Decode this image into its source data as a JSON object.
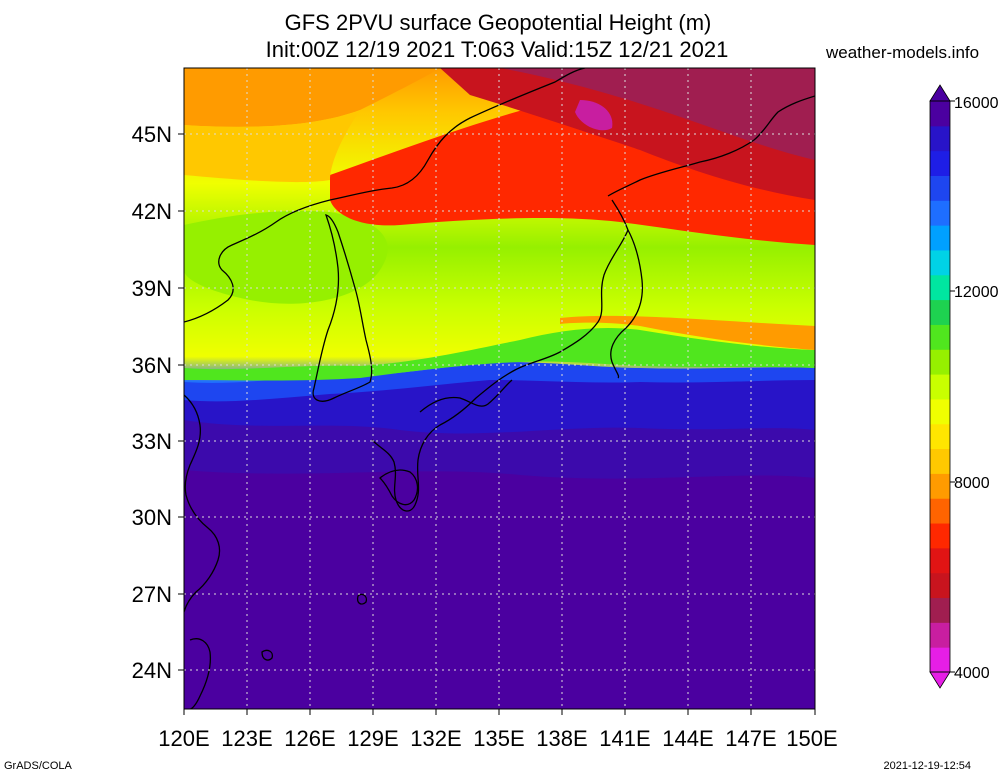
{
  "header": {
    "title_line1": "GFS 2PVU surface Geopotential Height (m)",
    "title_line2": "Init:00Z 12/19 2021 T:063 Valid:15Z 12/21 2021",
    "credit": "weather-models.info"
  },
  "map": {
    "projection": "lat-lon",
    "lon_range": [
      120,
      150
    ],
    "lat_range": [
      22.5,
      47.5
    ],
    "lon_ticks": [
      "120E",
      "123E",
      "126E",
      "129E",
      "132E",
      "135E",
      "138E",
      "141E",
      "144E",
      "147E",
      "150E"
    ],
    "lat_ticks": [
      "45N",
      "42N",
      "39N",
      "36N",
      "33N",
      "30N",
      "27N",
      "24N"
    ]
  },
  "colorbar": {
    "labels": [
      "16000",
      "12000",
      "8000",
      "4000"
    ],
    "colors": [
      "#e61ee6",
      "#c81ea0",
      "#a01e50",
      "#c8141e",
      "#e11414",
      "#ff2800",
      "#ff6400",
      "#ff9b00",
      "#ffc800",
      "#ffe600",
      "#f0ff00",
      "#c8ff00",
      "#96f000",
      "#50e61e",
      "#1ed250",
      "#00e6a0",
      "#00d2e6",
      "#00a0ff",
      "#1e6eff",
      "#1e46f0",
      "#1e1ee6",
      "#2814c8",
      "#4b00a0"
    ]
  },
  "footer": {
    "left": "GrADS/COLA",
    "right": "2021-12-19-12:54"
  }
}
